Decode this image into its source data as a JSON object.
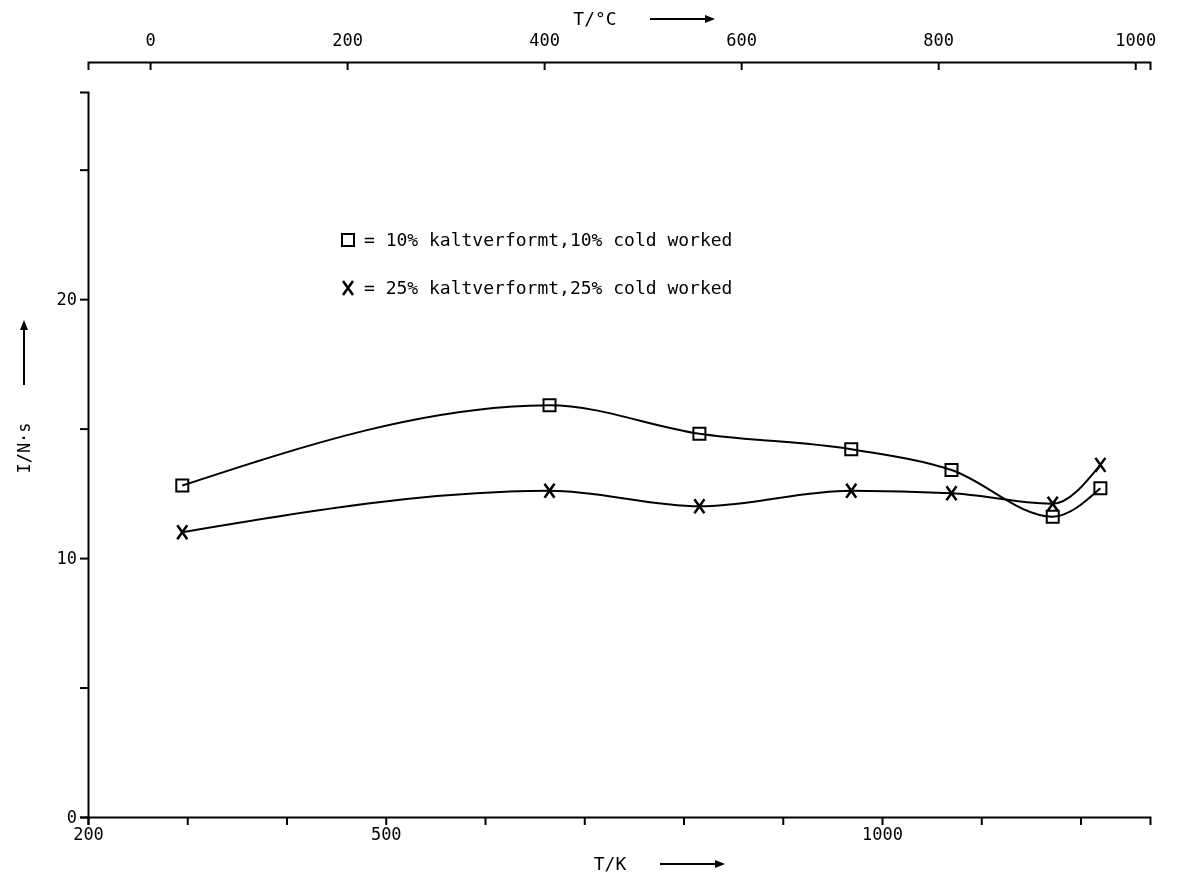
{
  "chart_data": {
    "type": "line",
    "xlabel": "T/K",
    "ylabel": "I/N·s",
    "x2label": "T/°C",
    "xlim": [
      200,
      1270
    ],
    "xticks": [
      200,
      {
        "value": 300,
        "label": null
      },
      {
        "value": 400,
        "label": null
      },
      500,
      {
        "value": 600,
        "label": null
      },
      {
        "value": 700,
        "label": null
      },
      {
        "value": 800,
        "label": null
      },
      {
        "value": 900,
        "label": null
      },
      1000,
      {
        "value": 1100,
        "label": null
      },
      {
        "value": 1200,
        "label": null
      }
    ],
    "x2lim": [
      -63,
      1015
    ],
    "x2ticks": [
      0,
      200,
      400,
      600,
      800,
      1000
    ],
    "ylim": [
      0,
      28
    ],
    "yticks": [
      0,
      {
        "value": 5,
        "label": null
      },
      10,
      {
        "value": 15,
        "label": null
      },
      20,
      {
        "value": 25,
        "label": null
      }
    ],
    "legend": "top left",
    "grid": false,
    "line_style": "solid",
    "series": [
      {
        "name": "= 10% kaltverformt,10% cold worked",
        "color": "#000000",
        "marker": "square",
        "x": [
          295,
          665,
          816,
          969,
          1070,
          1172,
          1220
        ],
        "values": [
          12.8,
          15.9,
          14.8,
          14.2,
          13.4,
          11.6,
          12.7
        ]
      },
      {
        "name": "= 25% kaltverformt,25% cold worked",
        "color": "#000000",
        "marker": "cross",
        "x": [
          295,
          665,
          816,
          969,
          1070,
          1172,
          1220
        ],
        "values": [
          11.0,
          12.6,
          12.0,
          12.6,
          12.5,
          12.1,
          13.6
        ]
      }
    ]
  }
}
